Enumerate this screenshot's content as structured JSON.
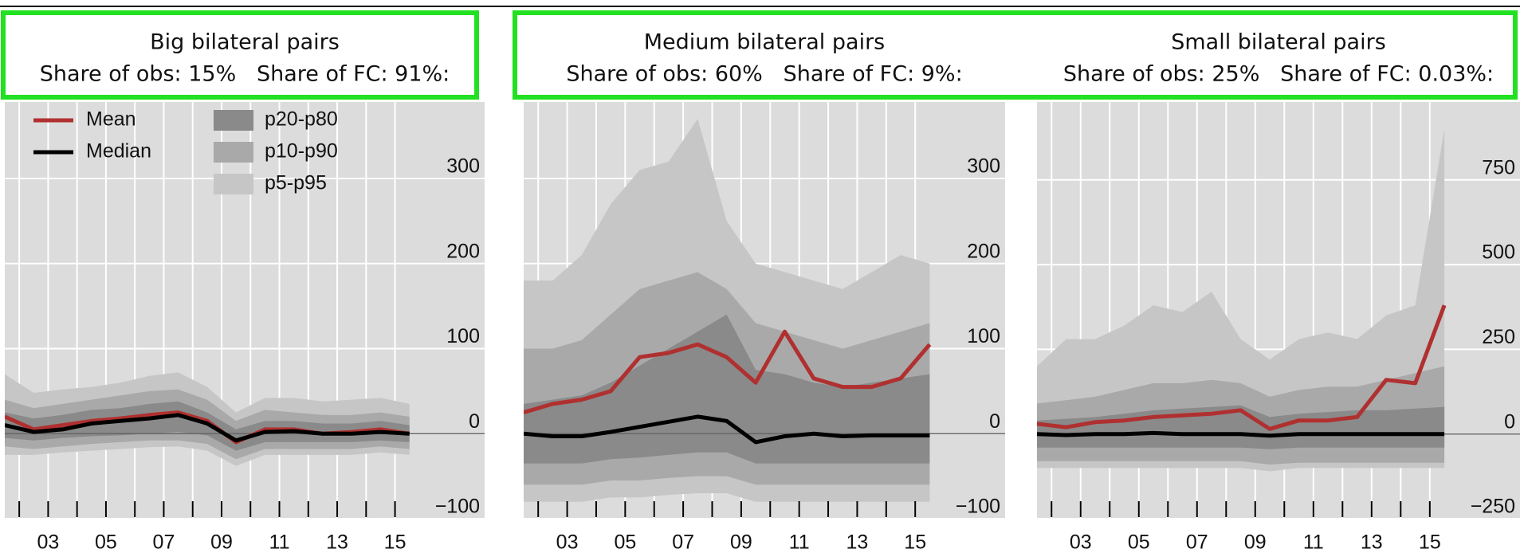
{
  "chart_data": [
    {
      "type": "band",
      "title": "Big bilateral pairs",
      "subtitle": "Share of obs: 15%   Share of FC: 91%:",
      "x": [
        2001.5,
        2002.5,
        2003.5,
        2004.5,
        2005.5,
        2006.5,
        2007.5,
        2008.5,
        2009.5,
        2010.5,
        2011.5,
        2012.5,
        2013.5,
        2014.5,
        2015.5
      ],
      "xlim": [
        2001.5,
        2018.1
      ],
      "xticks": [
        {
          "value": 2003,
          "label": "03"
        },
        {
          "value": 2005,
          "label": "05"
        },
        {
          "value": 2007,
          "label": "07"
        },
        {
          "value": 2009,
          "label": "09"
        },
        {
          "value": 2011,
          "label": "11"
        },
        {
          "value": 2013,
          "label": "13"
        },
        {
          "value": 2015,
          "label": "15"
        }
      ],
      "xminor": [
        2002,
        2004,
        2006,
        2008,
        2010,
        2012,
        2014
      ],
      "ylim": [
        -100,
        390
      ],
      "yticks": [
        {
          "value": -100,
          "label": "−100"
        },
        0,
        100,
        200,
        300
      ],
      "grid": true,
      "legend": "upper left",
      "series": [
        {
          "name": "Mean",
          "color": "#b03030",
          "values": [
            20,
            5,
            10,
            15,
            18,
            22,
            25,
            15,
            -10,
            5,
            5,
            0,
            2,
            5,
            0
          ]
        },
        {
          "name": "Median",
          "color": "#000000",
          "values": [
            10,
            2,
            5,
            12,
            15,
            18,
            22,
            12,
            -8,
            2,
            3,
            0,
            0,
            2,
            0
          ]
        }
      ],
      "bands": [
        {
          "name": "p5-p95",
          "color": "#c6c6c6",
          "lower": [
            -25,
            -25,
            -22,
            -20,
            -18,
            -16,
            -15,
            -20,
            -38,
            -25,
            -25,
            -25,
            -25,
            -22,
            -25
          ],
          "upper": [
            70,
            48,
            52,
            55,
            60,
            68,
            72,
            55,
            25,
            42,
            42,
            38,
            40,
            42,
            35
          ]
        },
        {
          "name": "p10-p90",
          "color": "#a9a9a9",
          "lower": [
            -15,
            -18,
            -15,
            -12,
            -10,
            -8,
            -8,
            -12,
            -30,
            -18,
            -18,
            -18,
            -18,
            -15,
            -18
          ],
          "upper": [
            40,
            30,
            35,
            40,
            45,
            50,
            52,
            40,
            15,
            28,
            25,
            22,
            22,
            25,
            20
          ]
        },
        {
          "name": "p20-p80",
          "color": "#8a8a8a",
          "lower": [
            -5,
            -8,
            -5,
            -3,
            -2,
            0,
            2,
            -2,
            -20,
            -10,
            -10,
            -10,
            -10,
            -8,
            -10
          ],
          "upper": [
            25,
            18,
            22,
            28,
            30,
            35,
            38,
            25,
            5,
            15,
            15,
            12,
            12,
            15,
            10
          ]
        }
      ]
    },
    {
      "type": "band",
      "title": "Medium bilateral pairs",
      "subtitle": "Share of obs: 60%   Share of FC: 9%:",
      "x": [
        2001.5,
        2002.5,
        2003.5,
        2004.5,
        2005.5,
        2006.5,
        2007.5,
        2008.5,
        2009.5,
        2010.5,
        2011.5,
        2012.5,
        2013.5,
        2014.5,
        2015.5
      ],
      "xlim": [
        2001.5,
        2018.1
      ],
      "xticks": [
        {
          "value": 2003,
          "label": "03"
        },
        {
          "value": 2005,
          "label": "05"
        },
        {
          "value": 2007,
          "label": "07"
        },
        {
          "value": 2009,
          "label": "09"
        },
        {
          "value": 2011,
          "label": "11"
        },
        {
          "value": 2013,
          "label": "13"
        },
        {
          "value": 2015,
          "label": "15"
        }
      ],
      "xminor": [
        2002,
        2004,
        2006,
        2008,
        2010,
        2012,
        2014
      ],
      "ylim": [
        -100,
        390
      ],
      "yticks": [
        {
          "value": -100,
          "label": "−100"
        },
        0,
        100,
        200,
        300
      ],
      "grid": true,
      "series": [
        {
          "color": "#b03030",
          "values": [
            25,
            35,
            40,
            50,
            90,
            95,
            105,
            90,
            60,
            120,
            65,
            55,
            55,
            65,
            105
          ]
        },
        {
          "color": "#000000",
          "values": [
            0,
            -3,
            -3,
            2,
            8,
            14,
            20,
            15,
            -10,
            -3,
            0,
            -3,
            -2,
            -2,
            -2
          ]
        }
      ],
      "bands": [
        {
          "color": "#c6c6c6",
          "lower": [
            -80,
            -80,
            -80,
            -75,
            -75,
            -72,
            -70,
            -70,
            -80,
            -80,
            -80,
            -80,
            -80,
            -80,
            -80
          ],
          "upper": [
            180,
            180,
            210,
            270,
            310,
            320,
            370,
            250,
            200,
            190,
            180,
            170,
            190,
            210,
            200
          ]
        },
        {
          "color": "#a9a9a9",
          "lower": [
            -60,
            -60,
            -60,
            -55,
            -55,
            -52,
            -50,
            -50,
            -60,
            -60,
            -60,
            -60,
            -60,
            -60,
            -60
          ],
          "upper": [
            100,
            100,
            110,
            140,
            170,
            180,
            190,
            170,
            130,
            120,
            110,
            100,
            110,
            120,
            130
          ]
        },
        {
          "color": "#8a8a8a",
          "lower": [
            -35,
            -35,
            -35,
            -30,
            -28,
            -25,
            -22,
            -22,
            -35,
            -35,
            -35,
            -35,
            -35,
            -35,
            -35
          ],
          "upper": [
            35,
            40,
            45,
            60,
            80,
            100,
            120,
            140,
            75,
            70,
            60,
            55,
            60,
            65,
            70
          ]
        }
      ]
    },
    {
      "type": "band",
      "title": "Small bilateral pairs",
      "subtitle": "Share of obs: 25%   Share of FC: 0.03%:",
      "x": [
        2001.5,
        2002.5,
        2003.5,
        2004.5,
        2005.5,
        2006.5,
        2007.5,
        2008.5,
        2009.5,
        2010.5,
        2011.5,
        2012.5,
        2013.5,
        2014.5,
        2015.5
      ],
      "xlim": [
        2001.5,
        2018.1
      ],
      "xticks": [
        {
          "value": 2003,
          "label": "03"
        },
        {
          "value": 2005,
          "label": "05"
        },
        {
          "value": 2007,
          "label": "07"
        },
        {
          "value": 2009,
          "label": "09"
        },
        {
          "value": 2011,
          "label": "11"
        },
        {
          "value": 2013,
          "label": "13"
        },
        {
          "value": 2015,
          "label": "15"
        }
      ],
      "xminor": [
        2002,
        2004,
        2006,
        2008,
        2010,
        2012,
        2014
      ],
      "ylim": [
        -250,
        980
      ],
      "yticks": [
        {
          "value": -250,
          "label": "−250"
        },
        0,
        250,
        500,
        750
      ],
      "grid": true,
      "series": [
        {
          "color": "#b03030",
          "values": [
            30,
            20,
            35,
            40,
            50,
            55,
            60,
            70,
            15,
            40,
            40,
            50,
            160,
            150,
            380
          ]
        },
        {
          "color": "#000000",
          "values": [
            0,
            -3,
            0,
            0,
            3,
            0,
            0,
            0,
            -5,
            0,
            0,
            0,
            0,
            0,
            0
          ]
        }
      ],
      "bands": [
        {
          "color": "#c6c6c6",
          "lower": [
            -100,
            -100,
            -100,
            -100,
            -100,
            -100,
            -100,
            -100,
            -110,
            -100,
            -100,
            -100,
            -100,
            -100,
            -100
          ],
          "upper": [
            200,
            280,
            280,
            320,
            380,
            360,
            420,
            280,
            220,
            280,
            300,
            280,
            350,
            380,
            900
          ]
        },
        {
          "color": "#a9a9a9",
          "lower": [
            -80,
            -80,
            -80,
            -80,
            -80,
            -80,
            -80,
            -80,
            -90,
            -85,
            -85,
            -85,
            -85,
            -85,
            -85
          ],
          "upper": [
            90,
            100,
            110,
            130,
            150,
            150,
            160,
            150,
            110,
            130,
            140,
            140,
            160,
            180,
            200
          ]
        },
        {
          "color": "#8a8a8a",
          "lower": [
            -40,
            -40,
            -40,
            -40,
            -40,
            -40,
            -40,
            -40,
            -45,
            -40,
            -40,
            -40,
            -40,
            -40,
            -40
          ],
          "upper": [
            40,
            45,
            50,
            60,
            70,
            75,
            80,
            85,
            50,
            60,
            65,
            70,
            70,
            75,
            80
          ]
        }
      ]
    }
  ]
}
